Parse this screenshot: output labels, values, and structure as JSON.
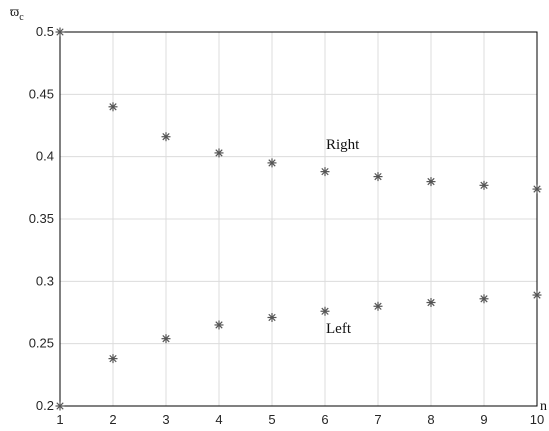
{
  "chart_data": {
    "type": "scatter",
    "xlabel": "n",
    "ylabel": {
      "base": "ϖ",
      "sub": "c"
    },
    "xlim": [
      1,
      10
    ],
    "ylim": [
      0.2,
      0.5
    ],
    "x_ticks": [
      1,
      2,
      3,
      4,
      5,
      6,
      7,
      8,
      9,
      10
    ],
    "y_ticks": [
      0.2,
      0.25,
      0.3,
      0.35,
      0.4,
      0.45,
      0.5
    ],
    "grid": true,
    "marker": "asterisk",
    "marker_color": "#555555",
    "series": [
      {
        "name": "Right",
        "x": [
          1,
          2,
          3,
          4,
          5,
          6,
          7,
          8,
          9,
          10
        ],
        "y": [
          0.5,
          0.44,
          0.416,
          0.403,
          0.395,
          0.388,
          0.384,
          0.38,
          0.377,
          0.374
        ]
      },
      {
        "name": "Left",
        "x": [
          1,
          2,
          3,
          4,
          5,
          6,
          7,
          8,
          9,
          10
        ],
        "y": [
          0.2,
          0.238,
          0.254,
          0.265,
          0.271,
          0.276,
          0.28,
          0.283,
          0.286,
          0.289
        ]
      }
    ]
  }
}
